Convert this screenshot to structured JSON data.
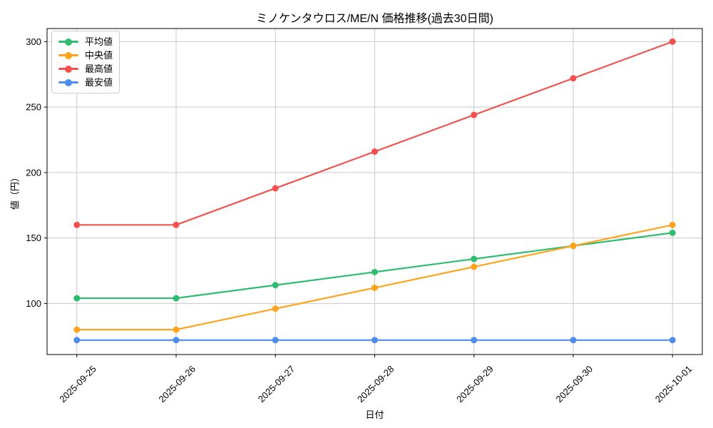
{
  "chart_data": {
    "type": "line",
    "title": "ミノケンタウロス/ME/N 価格推移(過去30日間)",
    "xlabel": "日付",
    "ylabel": "値（円）",
    "categories": [
      "2025-09-25",
      "2025-09-26",
      "2025-09-27",
      "2025-09-28",
      "2025-09-29",
      "2025-09-30",
      "2025-10-01"
    ],
    "series": [
      {
        "name": "平均値",
        "color": "#2ebd6e",
        "values": [
          104,
          104,
          114,
          124,
          134,
          144,
          154
        ]
      },
      {
        "name": "中央値",
        "color": "#ffa41c",
        "values": [
          80,
          80,
          96,
          112,
          128,
          144,
          160
        ]
      },
      {
        "name": "最高値",
        "color": "#f4514e",
        "values": [
          160,
          160,
          188,
          216,
          244,
          272,
          300
        ]
      },
      {
        "name": "最安値",
        "color": "#4d8df0",
        "values": [
          72,
          72,
          72,
          72,
          72,
          72,
          72
        ]
      }
    ],
    "yticks": [
      100,
      150,
      200,
      250,
      300
    ],
    "ylim": [
      61,
      310
    ],
    "xlim": [
      -0.3,
      6.3
    ],
    "grid": true,
    "grid_color": "#c9c9c9",
    "background": "#ffffff",
    "axis_color": "#000000",
    "legend_position": "upper left",
    "line_width": 2.2,
    "marker": "circle",
    "marker_radius": 4.5
  }
}
